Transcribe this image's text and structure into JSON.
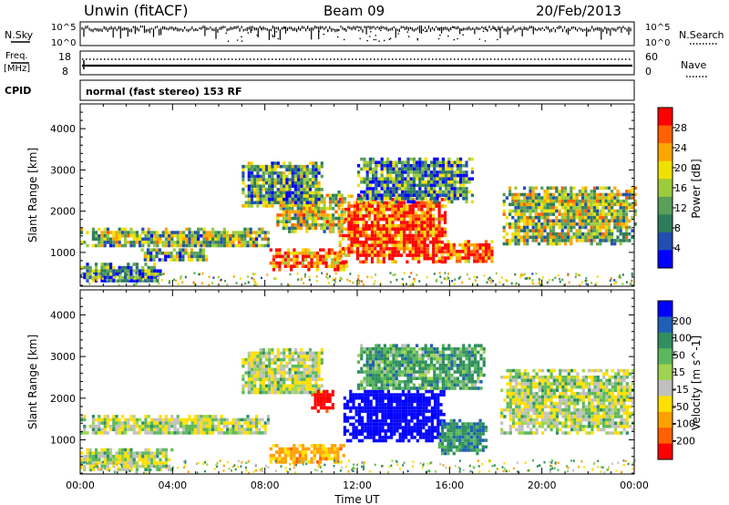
{
  "header": {
    "station": "Unwin (fitACF)",
    "beam": "Beam 09",
    "date": "20/Feb/2013"
  },
  "top_panels": {
    "nsky_label": "N.Sky",
    "nsky_ticks": [
      "10^5",
      "10^0"
    ],
    "nsearch_label": "N.Search",
    "nsearch_ticks": [
      "10^5",
      "10^0"
    ],
    "freq_label_1": "Freq.",
    "freq_label_2": "[MHz]",
    "freq_ticks": [
      "18",
      "8"
    ],
    "nave_label": "Nave",
    "nave_ticks": [
      "60",
      "0"
    ],
    "cpid_label": "CPID",
    "cpid_text": "normal (fast stereo) 153 RF"
  },
  "chart_data": [
    {
      "type": "heatmap",
      "quantity": "Power",
      "ylabel": "Slant Range [km]",
      "xlabel": "Time UT",
      "x_ticks": [
        "00:00",
        "04:00",
        "08:00",
        "12:00",
        "16:00",
        "20:00",
        "00:00"
      ],
      "y_ticks": [
        1000,
        2000,
        3000,
        4000
      ],
      "ylim": [
        180,
        4600
      ],
      "colorbar": {
        "label": "Power [dB]",
        "ticks": [
          "4",
          "8",
          "12",
          "16",
          "20",
          "24",
          "28"
        ],
        "colors": [
          "#0000ff",
          "#1f4fb0",
          "#2e7d5a",
          "#5aa05a",
          "#9ccc3c",
          "#f0e000",
          "#ffa500",
          "#ff6000",
          "#ff0000"
        ]
      },
      "regions": [
        {
          "t0": 0.0,
          "t1": 8.2,
          "r0": 1150,
          "r1": 1600,
          "level": 0.45
        },
        {
          "t0": 0.0,
          "t1": 3.5,
          "r0": 300,
          "r1": 750,
          "level": 0.3
        },
        {
          "t0": 2.5,
          "t1": 5.5,
          "r0": 800,
          "r1": 1100,
          "level": 0.4
        },
        {
          "t0": 8.2,
          "t1": 11.5,
          "r0": 600,
          "r1": 1100,
          "level": 0.85
        },
        {
          "t0": 11.2,
          "t1": 15.8,
          "r0": 800,
          "r1": 2400,
          "level": 0.9
        },
        {
          "t0": 15.5,
          "t1": 17.8,
          "r0": 800,
          "r1": 1300,
          "level": 0.9
        },
        {
          "t0": 8.5,
          "t1": 11.5,
          "r0": 1500,
          "r1": 2500,
          "level": 0.55
        },
        {
          "t0": 7.0,
          "t1": 10.5,
          "r0": 2100,
          "r1": 3200,
          "level": 0.35
        },
        {
          "t0": 12.0,
          "t1": 17.0,
          "r0": 2200,
          "r1": 3300,
          "level": 0.3
        },
        {
          "t0": 18.3,
          "t1": 24.0,
          "r0": 1200,
          "r1": 2600,
          "level": 0.5
        }
      ]
    },
    {
      "type": "heatmap",
      "quantity": "Velocity",
      "ylabel": "Slant Range [km]",
      "xlabel": "Time UT",
      "x_ticks": [
        "00:00",
        "04:00",
        "08:00",
        "12:00",
        "16:00",
        "20:00",
        "00:00"
      ],
      "y_ticks": [
        1000,
        2000,
        3000,
        4000
      ],
      "ylim": [
        180,
        4600
      ],
      "colorbar": {
        "label": "Velocity [m s^-1]",
        "ticks": [
          "200",
          "100",
          "50",
          "15",
          "-15",
          "-50",
          "-100",
          "-200"
        ],
        "colors": [
          "#0000ff",
          "#1f5fb8",
          "#2f8f5f",
          "#5cb85c",
          "#9ed44f",
          "#c0c0c0",
          "#ffe000",
          "#ffa000",
          "#ff6000",
          "#ff0000"
        ]
      },
      "regions": [
        {
          "t0": 0.0,
          "t1": 8.2,
          "r0": 1150,
          "r1": 1600,
          "vel": 0
        },
        {
          "t0": 0.0,
          "t1": 4.0,
          "r0": 300,
          "r1": 800,
          "vel": 0
        },
        {
          "t0": 8.2,
          "t1": 11.4,
          "r0": 500,
          "r1": 900,
          "vel": -70
        },
        {
          "t0": 11.4,
          "t1": 15.8,
          "r0": 1000,
          "r1": 2200,
          "vel": 190
        },
        {
          "t0": 15.5,
          "t1": 17.6,
          "r0": 700,
          "r1": 1500,
          "vel": 55
        },
        {
          "t0": 7.0,
          "t1": 10.5,
          "r0": 2100,
          "r1": 3200,
          "vel": 0
        },
        {
          "t0": 10.0,
          "t1": 11.0,
          "r0": 1700,
          "r1": 2200,
          "vel": -180
        },
        {
          "t0": 12.0,
          "t1": 17.5,
          "r0": 2200,
          "r1": 3300,
          "vel": 40
        },
        {
          "t0": 18.2,
          "t1": 24.0,
          "r0": 1200,
          "r1": 2700,
          "vel": 0
        }
      ]
    }
  ]
}
